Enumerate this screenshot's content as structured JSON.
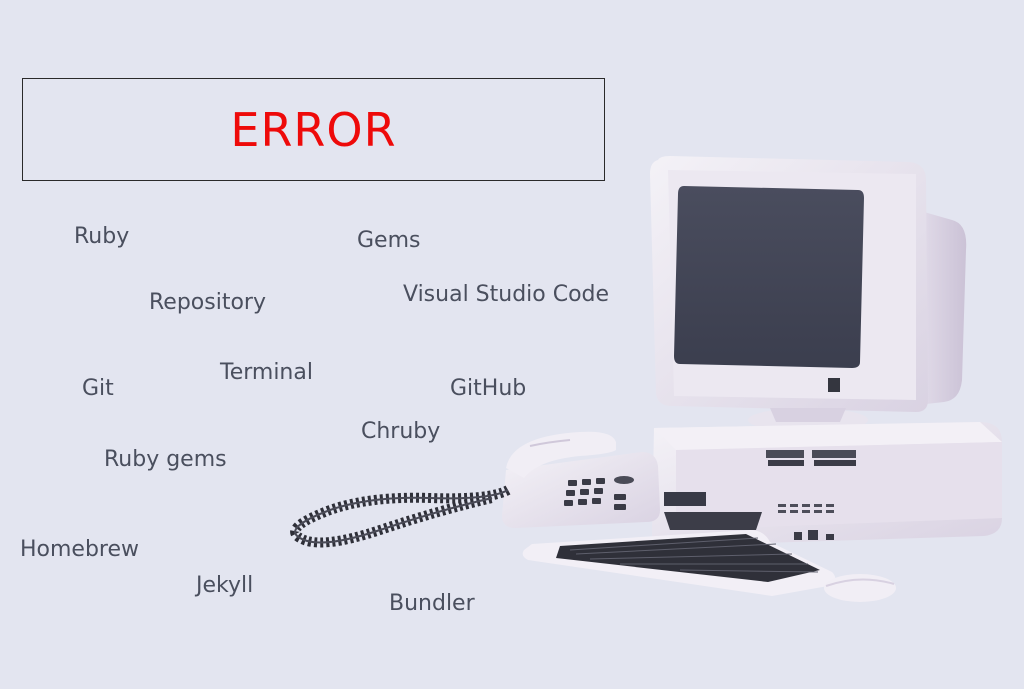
{
  "error_box": {
    "label": "ERROR",
    "color": "#ee0a0a"
  },
  "keywords": {
    "ruby": "Ruby",
    "gems": "Gems",
    "repository": "Repository",
    "visual_studio_code": "Visual Studio Code",
    "git": "Git",
    "terminal": "Terminal",
    "github": "GitHub",
    "chruby": "Chruby",
    "ruby_gems": "Ruby gems",
    "homebrew": "Homebrew",
    "jekyll": "Jekyll",
    "bundler": "Bundler"
  },
  "illustration": {
    "icon": "retro-computer-illustration"
  }
}
